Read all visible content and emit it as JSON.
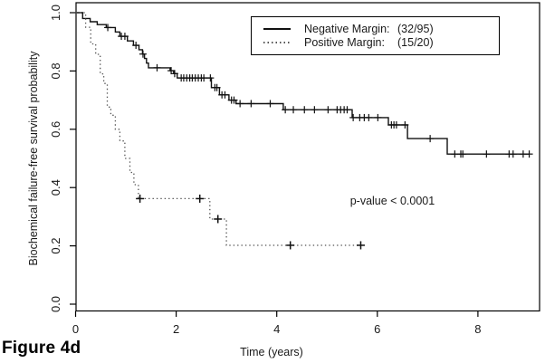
{
  "figure_label": "Figure 4d",
  "chart_data": {
    "type": "line",
    "subtype": "kaplan-meier-step",
    "title": "",
    "xlabel": "Time (years)",
    "ylabel": "Biochemical failure-free survival probability",
    "xlim": [
      0,
      9.2
    ],
    "ylim": [
      -0.02,
      1.03
    ],
    "x_ticks": [
      0,
      2,
      4,
      6,
      8
    ],
    "x_tick_labels": [
      "0",
      "2",
      "4",
      "6",
      "8"
    ],
    "y_ticks": [
      0.0,
      0.2,
      0.4,
      0.6,
      0.8,
      1.0
    ],
    "y_tick_labels": [
      "0.0",
      "0.2",
      "0.4",
      "0.6",
      "0.8",
      "1.0"
    ],
    "grid": false,
    "legend_position": "top-right",
    "annotations": [
      {
        "text": "p-value < 0.0001",
        "x": 6.3,
        "y": 0.354
      }
    ],
    "series": [
      {
        "id": "negative-margin",
        "label": "Negative Margin:",
        "count": "(32/95)",
        "line": "solid",
        "color": "#111111",
        "steps": [
          [
            0,
            1.0
          ],
          [
            0.14,
            0.98
          ],
          [
            0.29,
            0.969
          ],
          [
            0.43,
            0.959
          ],
          [
            0.61,
            0.949
          ],
          [
            0.79,
            0.934
          ],
          [
            0.88,
            0.919
          ],
          [
            1.03,
            0.903
          ],
          [
            1.15,
            0.888
          ],
          [
            1.26,
            0.873
          ],
          [
            1.33,
            0.858
          ],
          [
            1.37,
            0.843
          ],
          [
            1.41,
            0.827
          ],
          [
            1.45,
            0.811
          ],
          [
            1.88,
            0.801
          ],
          [
            1.95,
            0.791
          ],
          [
            2.02,
            0.776
          ],
          [
            2.7,
            0.743
          ],
          [
            2.86,
            0.718
          ],
          [
            3.05,
            0.7
          ],
          [
            3.19,
            0.688
          ],
          [
            4.13,
            0.667
          ],
          [
            5.5,
            0.64
          ],
          [
            6.22,
            0.615
          ],
          [
            6.6,
            0.568
          ],
          [
            7.39,
            0.515
          ]
        ],
        "end_time": 9.03,
        "censor_times": [
          0.64,
          0.91,
          0.98,
          1.2,
          1.34,
          1.62,
          1.9,
          1.97,
          2.1,
          2.15,
          2.21,
          2.27,
          2.32,
          2.38,
          2.44,
          2.5,
          2.55,
          2.68,
          2.77,
          2.81,
          2.91,
          2.97,
          3.1,
          3.15,
          3.27,
          3.49,
          3.87,
          4.17,
          4.33,
          4.55,
          4.75,
          5.02,
          5.2,
          5.27,
          5.34,
          5.4,
          5.52,
          5.65,
          5.74,
          5.83,
          6.01,
          6.28,
          6.33,
          6.38,
          6.55,
          7.05,
          7.54,
          7.66,
          7.7,
          8.17,
          8.62,
          8.7,
          8.9,
          9.02
        ]
      },
      {
        "id": "positive-margin",
        "label": "Positive Margin:",
        "count": "(15/20)",
        "line": "dotted",
        "color": "#555555",
        "steps": [
          [
            0,
            1.0
          ],
          [
            0.2,
            0.95
          ],
          [
            0.3,
            0.893
          ],
          [
            0.4,
            0.857
          ],
          [
            0.49,
            0.79
          ],
          [
            0.56,
            0.757
          ],
          [
            0.63,
            0.676
          ],
          [
            0.7,
            0.648
          ],
          [
            0.79,
            0.6
          ],
          [
            0.88,
            0.56
          ],
          [
            0.98,
            0.5
          ],
          [
            1.08,
            0.452
          ],
          [
            1.16,
            0.41
          ],
          [
            1.25,
            0.362
          ],
          [
            2.67,
            0.292
          ],
          [
            3.0,
            0.202
          ]
        ],
        "end_time": 5.67,
        "censor_times": [
          1.28,
          2.47,
          2.83,
          4.27,
          5.67
        ]
      }
    ]
  }
}
